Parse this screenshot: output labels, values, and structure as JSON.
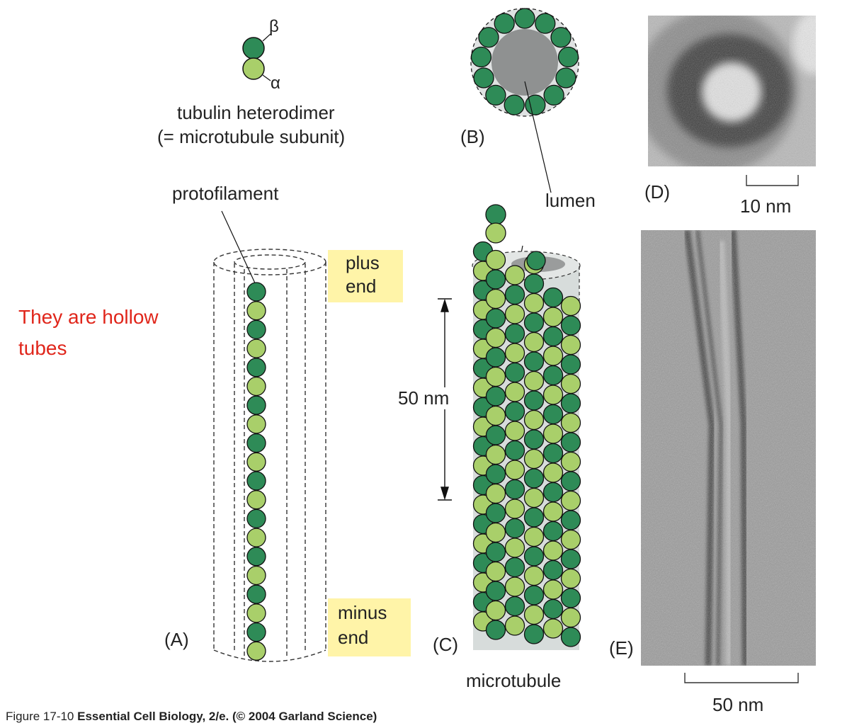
{
  "colors": {
    "beta": "#2e8b57",
    "alpha": "#a9cf6a",
    "lumen": "#909090",
    "highlight": "#fff4a8",
    "note": "#e0261b"
  },
  "heterodimer": {
    "beta_symbol": "β",
    "alpha_symbol": "α",
    "title_line1": "tubulin heterodimer",
    "title_line2": "(= microtubule subunit)"
  },
  "panels": {
    "a": "(A)",
    "b": "(B)",
    "c": "(C)",
    "d": "(D)",
    "e": "(E)"
  },
  "labels": {
    "protofilament": "protofilament",
    "plus_line1": "plus",
    "plus_line2": "end",
    "minus_line1": "minus",
    "minus_line2": "end",
    "lumen": "lumen",
    "length_50nm": "50 nm",
    "microtubule": "microtubule",
    "scale_d": "10 nm",
    "scale_e": "50 nm"
  },
  "note": {
    "line1": "They are hollow",
    "line2": "tubes"
  },
  "caption": {
    "figure": "Figure 17-10",
    "source": "Essential Cell Biology, 2/e. (© 2004 Garland Science)"
  }
}
